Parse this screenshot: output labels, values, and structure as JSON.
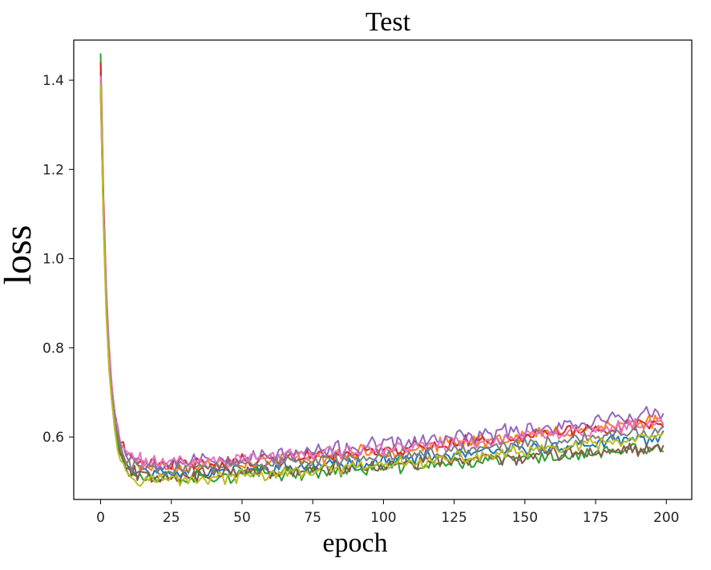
{
  "chart_data": {
    "type": "line",
    "title": "Test",
    "xlabel": "epoch",
    "ylabel": "loss",
    "xlim": [
      -9.5,
      209
    ],
    "ylim": [
      0.46,
      1.49
    ],
    "xticks": [
      0,
      25,
      50,
      75,
      100,
      125,
      150,
      175,
      200
    ],
    "yticks": [
      0.6,
      0.8,
      1.0,
      1.2,
      1.4
    ],
    "xtick_labels": [
      "0",
      "25",
      "50",
      "75",
      "100",
      "125",
      "150",
      "175",
      "200"
    ],
    "ytick_labels": [
      "0.6",
      "0.8",
      "1.0",
      "1.2",
      "1.4"
    ],
    "grid": false,
    "legend": "none",
    "epochs": 200,
    "series": [
      {
        "color": "#1f77b4",
        "start": 1.42,
        "min": 0.52,
        "end": 0.6,
        "noise": 0.012,
        "seed": 11
      },
      {
        "color": "#ff7f0e",
        "start": 1.38,
        "min": 0.535,
        "end": 0.64,
        "noise": 0.013,
        "seed": 23
      },
      {
        "color": "#2ca02c",
        "start": 1.46,
        "min": 0.51,
        "end": 0.575,
        "noise": 0.013,
        "seed": 37
      },
      {
        "color": "#d62728",
        "start": 1.44,
        "min": 0.54,
        "end": 0.635,
        "noise": 0.012,
        "seed": 41
      },
      {
        "color": "#9467bd",
        "start": 1.4,
        "min": 0.545,
        "end": 0.655,
        "noise": 0.015,
        "seed": 53
      },
      {
        "color": "#8c564b",
        "start": 1.39,
        "min": 0.515,
        "end": 0.58,
        "noise": 0.013,
        "seed": 67
      },
      {
        "color": "#e377c2",
        "start": 1.41,
        "min": 0.545,
        "end": 0.63,
        "noise": 0.013,
        "seed": 71
      },
      {
        "color": "#7f7f7f",
        "start": 1.37,
        "min": 0.53,
        "end": 0.615,
        "noise": 0.012,
        "seed": 83
      },
      {
        "color": "#bcbd22",
        "start": 1.39,
        "min": 0.505,
        "end": 0.6,
        "noise": 0.012,
        "seed": 97
      }
    ]
  }
}
